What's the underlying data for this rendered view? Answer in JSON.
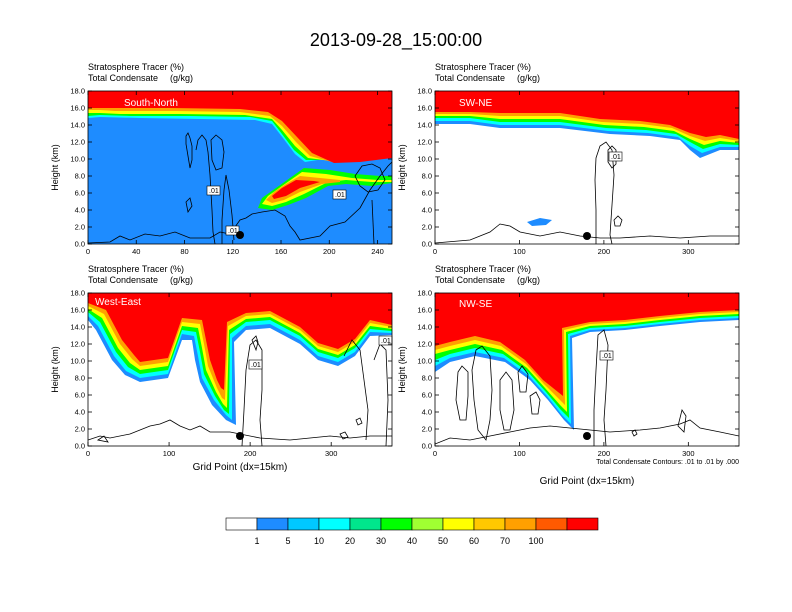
{
  "page_title": "2013-09-28_15:00:00",
  "colors": {
    "levels": [
      "#ffffff",
      "#1e8cff",
      "#00c8ff",
      "#00ffff",
      "#00e68c",
      "#00ff00",
      "#a0ff32",
      "#ffff00",
      "#ffc800",
      "#ffa000",
      "#ff5a00",
      "#ff0000"
    ]
  },
  "chart_data": [
    {
      "type": "contour",
      "panel": "south-north",
      "section_label": "South-North",
      "title_line1": "Stratosphere Tracer",
      "title_line1_units": "(%)",
      "title_line2": "Total Condensate",
      "title_line2_units": "(g/kg)",
      "ylabel": "Height (km)",
      "xlabel": "",
      "ylim": [
        0,
        18
      ],
      "xlim": [
        0,
        252
      ],
      "yticks": [
        "0.0",
        "2.0",
        "4.0",
        "6.0",
        "8.0",
        "10.0",
        "12.0",
        "14.0",
        "16.0",
        "18.0"
      ],
      "xticks": [
        0,
        40,
        80,
        120,
        160,
        200,
        240
      ],
      "contour_labels": [
        ".01",
        ".01",
        ".01"
      ],
      "marker_x": 125
    },
    {
      "type": "contour",
      "panel": "sw-ne",
      "section_label": "SW-NE",
      "title_line1": "Stratosphere Tracer",
      "title_line1_units": "(%)",
      "title_line2": "Total Condensate",
      "title_line2_units": "(g/kg)",
      "ylabel": "Height (km)",
      "xlabel": "",
      "ylim": [
        0,
        18
      ],
      "xlim": [
        0,
        360
      ],
      "yticks": [
        "0.0",
        "2.0",
        "4.0",
        "6.0",
        "8.0",
        "10.0",
        "12.0",
        "14.0",
        "16.0",
        "18.0"
      ],
      "xticks": [
        0,
        100,
        200,
        300
      ],
      "contour_labels": [
        ".01"
      ],
      "marker_x": 180
    },
    {
      "type": "contour",
      "panel": "west-east",
      "section_label": "West-East",
      "title_line1": "Stratosphere Tracer",
      "title_line1_units": "(%)",
      "title_line2": "Total Condensate",
      "title_line2_units": "(g/kg)",
      "ylabel": "Height (km)",
      "xlabel": "Grid Point (dx=15km)",
      "ylim": [
        0,
        18
      ],
      "xlim": [
        0,
        375
      ],
      "yticks": [
        "0.0",
        "2.0",
        "4.0",
        "6.0",
        "8.0",
        "10.0",
        "12.0",
        "14.0",
        "16.0",
        "18.0"
      ],
      "xticks": [
        0,
        100,
        200,
        300
      ],
      "contour_labels": [
        ".01",
        ".01"
      ],
      "marker_x": 187
    },
    {
      "type": "contour",
      "panel": "nw-se",
      "section_label": "NW-SE",
      "title_line1": "Stratosphere Tracer",
      "title_line1_units": "(%)",
      "title_line2": "Total Condensate",
      "title_line2_units": "(g/kg)",
      "ylabel": "Height (km)",
      "xlabel": "Grid Point (dx=15km)",
      "ylim": [
        0,
        18
      ],
      "xlim": [
        0,
        360
      ],
      "yticks": [
        "0.0",
        "2.0",
        "4.0",
        "6.0",
        "8.0",
        "10.0",
        "12.0",
        "14.0",
        "16.0",
        "18.0"
      ],
      "xticks": [
        0,
        100,
        200,
        300
      ],
      "contour_labels": [
        ".01"
      ],
      "marker_x": 180,
      "contour_note": "Total Condensate Contours: .01 to .01 by .000"
    }
  ],
  "colorbar": {
    "labels": [
      "1",
      "5",
      "10",
      "20",
      "30",
      "40",
      "50",
      "60",
      "70",
      "100"
    ]
  }
}
